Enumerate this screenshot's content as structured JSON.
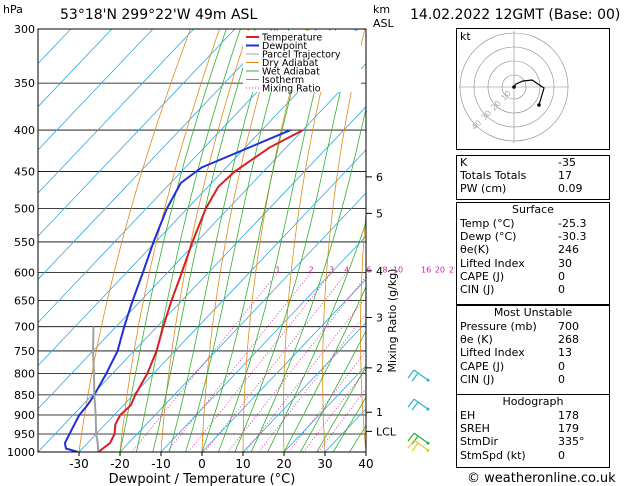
{
  "header": {
    "pressure_unit": "hPa",
    "location": "53°18'N  299°22'W  49m  ASL",
    "height_unit": "km",
    "height_unit_sub": "ASL",
    "datetime": "14.02.2022  12GMT  (Base: 00)"
  },
  "chart_data": {
    "type": "skew-t log-p",
    "xlabel": "Dewpoint / Temperature (°C)",
    "ylabel_right": "Mixing Ratio (g/kg)",
    "ylabel_left": "hPa",
    "ylim": [
      1000,
      300
    ],
    "xlim": [
      -40,
      40
    ],
    "pressure_ticks": [
      300,
      350,
      400,
      450,
      500,
      550,
      600,
      650,
      700,
      750,
      800,
      850,
      900,
      950,
      1000
    ],
    "temperature_ticks": [
      -30,
      -20,
      -10,
      0,
      10,
      20,
      30,
      40
    ],
    "km_ticks": [
      {
        "label": "6",
        "p": 457
      },
      {
        "label": "5",
        "p": 507
      },
      {
        "label": "4",
        "p": 597
      },
      {
        "label": "3",
        "p": 682
      },
      {
        "label": "2",
        "p": 787
      },
      {
        "label": "1",
        "p": 893
      },
      {
        "label": "LCL",
        "p": 943
      }
    ],
    "mixing_ratio_labels": [
      "1",
      "2",
      "3",
      "4",
      "6",
      "8",
      "10",
      "16",
      "20",
      "25"
    ],
    "mixing_ratio_values": [
      1,
      2,
      3,
      4,
      6,
      8,
      10,
      16,
      20,
      25
    ],
    "mixing_ratio_label_p": 600,
    "legend": [
      "Temperature",
      "Dewpoint",
      "Parcel Trajectory",
      "Dry Adiabat",
      "Wet Adiabat",
      "Isotherm",
      "Mixing Ratio"
    ],
    "legend_placement": "top-left",
    "series": [
      {
        "name": "Temperature",
        "color": "#d62020",
        "points": [
          [
            1000,
            -25.3
          ],
          [
            975,
            -24.5
          ],
          [
            950,
            -25.5
          ],
          [
            925,
            -27.5
          ],
          [
            900,
            -28.5
          ],
          [
            875,
            -28.2
          ],
          [
            850,
            -29.5
          ],
          [
            800,
            -31.5
          ],
          [
            750,
            -34.5
          ],
          [
            700,
            -38.5
          ],
          [
            650,
            -42.5
          ],
          [
            600,
            -46.5
          ],
          [
            550,
            -51
          ],
          [
            500,
            -55.5
          ],
          [
            470,
            -57.5
          ],
          [
            450,
            -57
          ],
          [
            420,
            -54
          ],
          [
            400,
            -50
          ]
        ]
      },
      {
        "name": "Dewpoint",
        "color": "#2030d6",
        "points": [
          [
            1000,
            -30.3
          ],
          [
            990,
            -34
          ],
          [
            975,
            -35.5
          ],
          [
            950,
            -36.5
          ],
          [
            925,
            -37.5
          ],
          [
            900,
            -38.5
          ],
          [
            875,
            -38.8
          ],
          [
            850,
            -39.5
          ],
          [
            800,
            -41.5
          ],
          [
            750,
            -44
          ],
          [
            700,
            -48
          ],
          [
            650,
            -52
          ],
          [
            600,
            -56
          ],
          [
            550,
            -60.5
          ],
          [
            500,
            -65
          ],
          [
            465,
            -67.5
          ],
          [
            445,
            -66
          ],
          [
            400,
            -53
          ]
        ]
      },
      {
        "name": "Parcel Trajectory",
        "color": "#a0a0a0",
        "points": [
          [
            1000,
            -25.3
          ],
          [
            975,
            -27.5
          ],
          [
            950,
            -30
          ],
          [
            900,
            -34.5
          ],
          [
            850,
            -39.5
          ],
          [
            800,
            -44.5
          ],
          [
            750,
            -50
          ],
          [
            700,
            -55.5
          ]
        ]
      }
    ],
    "wind_barbs": [
      {
        "p": 815,
        "color": "#30b0d0"
      },
      {
        "p": 885,
        "color": "#30b0d0"
      },
      {
        "p": 975,
        "color": "#20b040"
      },
      {
        "p": 995,
        "color": "#e0d020"
      }
    ]
  },
  "hodograph": {
    "label": "kt",
    "ring_labels": [
      "10",
      "20",
      "30",
      "40"
    ]
  },
  "indices": {
    "rows": [
      {
        "label": "K",
        "value": "-35"
      },
      {
        "label": "Totals Totals",
        "value": "17"
      },
      {
        "label": "PW (cm)",
        "value": "0.09"
      }
    ]
  },
  "surface": {
    "title": "Surface",
    "rows": [
      {
        "label": "Temp (°C)",
        "value": "-25.3"
      },
      {
        "label": "Dewp (°C)",
        "value": "-30.3"
      },
      {
        "label": "θe(K)",
        "value": "246"
      },
      {
        "label": "Lifted Index",
        "value": "30"
      },
      {
        "label": "CAPE (J)",
        "value": "0"
      },
      {
        "label": "CIN (J)",
        "value": "0"
      }
    ]
  },
  "most_unstable": {
    "title": "Most Unstable",
    "rows": [
      {
        "label": "Pressure (mb)",
        "value": "700"
      },
      {
        "label": "θe (K)",
        "value": "268"
      },
      {
        "label": "Lifted Index",
        "value": "13"
      },
      {
        "label": "CAPE (J)",
        "value": "0"
      },
      {
        "label": "CIN (J)",
        "value": "0"
      }
    ]
  },
  "hodograph_table": {
    "title": "Hodograph",
    "rows": [
      {
        "label": "EH",
        "value": "178"
      },
      {
        "label": "SREH",
        "value": "179"
      },
      {
        "label": "StmDir",
        "value": "335°"
      },
      {
        "label": "StmSpd (kt)",
        "value": "0"
      }
    ]
  },
  "footer": {
    "copyright": "© weatheronline.co.uk"
  },
  "colors": {
    "temperature": "#d62020",
    "dewpoint": "#2030d6",
    "parcel": "#a0a0a0",
    "dry_adiabat": "#e08a1a",
    "wet_adiabat": "#30b030",
    "isotherm": "#30a8e0",
    "mixing_ratio": "#d020a0"
  }
}
